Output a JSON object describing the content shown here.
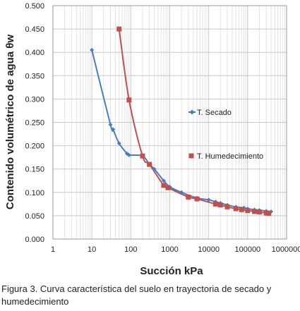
{
  "chart_data": {
    "type": "line",
    "title": "",
    "xlabel": "Succión kPa",
    "ylabel": "Contenido volumétrico de agua θw",
    "xscale": "log",
    "xlim": [
      1,
      1000000
    ],
    "ylim": [
      0,
      0.5
    ],
    "x_ticks": [
      "1",
      "10",
      "100",
      "1000",
      "10000",
      "100000",
      "1000000"
    ],
    "y_ticks": [
      "0.000",
      "0.050",
      "0.100",
      "0.150",
      "0.200",
      "0.250",
      "0.300",
      "0.350",
      "0.400",
      "0.450",
      "0.500"
    ],
    "grid": true,
    "series": [
      {
        "name": "T. Secado",
        "color": "#4a7ebb",
        "marker": "diamond",
        "x": [
          10,
          30,
          35,
          50,
          80,
          90,
          200,
          300,
          400,
          700,
          1000,
          2000,
          5000,
          10000,
          15000,
          20000,
          30000,
          50000,
          80000,
          100000,
          150000,
          200000,
          300000,
          400000
        ],
        "y": [
          0.405,
          0.245,
          0.235,
          0.205,
          0.183,
          0.18,
          0.178,
          0.16,
          0.15,
          0.125,
          0.112,
          0.1,
          0.088,
          0.084,
          0.08,
          0.077,
          0.073,
          0.069,
          0.067,
          0.065,
          0.063,
          0.062,
          0.06,
          0.059
        ]
      },
      {
        "name": "T. Humedecimiento",
        "color": "#c0504d",
        "marker": "square",
        "x": [
          50,
          90,
          200,
          300,
          700,
          900,
          3000,
          5000,
          15000,
          20000,
          30000,
          50000,
          70000,
          100000,
          150000,
          200000,
          300000,
          350000
        ],
        "y": [
          0.45,
          0.298,
          0.178,
          0.16,
          0.115,
          0.11,
          0.09,
          0.086,
          0.075,
          0.073,
          0.069,
          0.065,
          0.063,
          0.061,
          0.059,
          0.058,
          0.056,
          0.055
        ]
      }
    ]
  },
  "caption": "Figura 3. Curva característica del suelo en trayectoria de secado y humedecimiento",
  "legend": {
    "secado": "T. Secado",
    "humedecimiento": "T. Humedecimiento"
  }
}
